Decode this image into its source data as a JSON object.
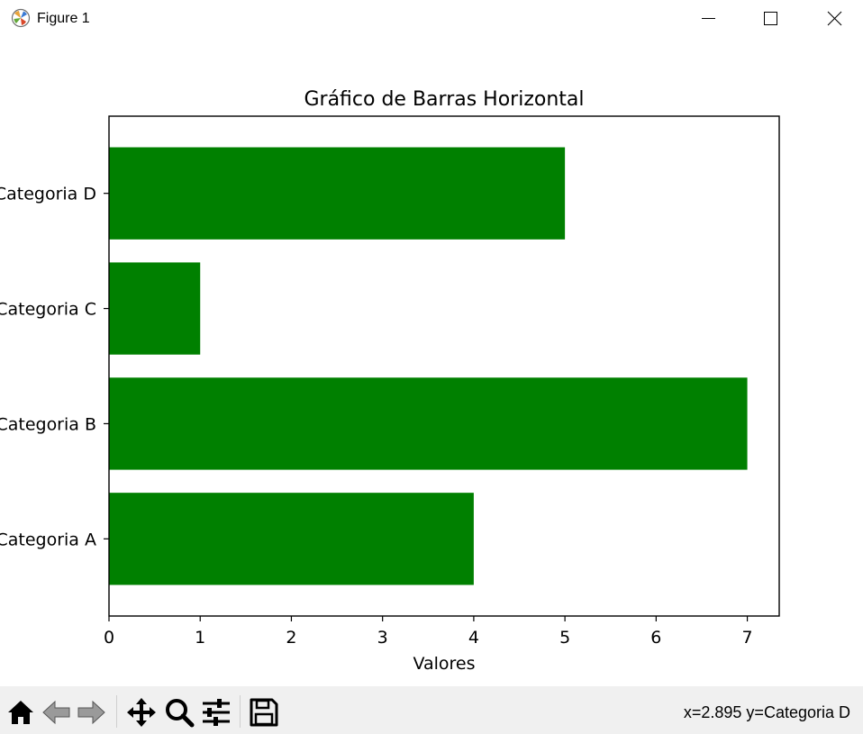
{
  "window": {
    "title": "Figure 1",
    "icons": {
      "app": "matplotlib-logo-icon",
      "minimize": "minimize-icon",
      "maximize": "maximize-icon",
      "close": "close-icon"
    }
  },
  "chart_data": {
    "type": "bar",
    "orientation": "horizontal",
    "title": "Gráfico de Barras Horizontal",
    "xlabel": "Valores",
    "ylabel": "",
    "categories": [
      "Categoria A",
      "Categoria B",
      "Categoria C",
      "Categoria D"
    ],
    "values": [
      4,
      7,
      1,
      5
    ],
    "xlim": [
      0,
      7.35
    ],
    "xticks": [
      0,
      1,
      2,
      3,
      4,
      5,
      6,
      7
    ],
    "bar_color": "#008000",
    "grid": false,
    "legend": null
  },
  "toolbar": {
    "tools": [
      {
        "name": "home-icon",
        "label": "Home"
      },
      {
        "name": "back-icon",
        "label": "Back"
      },
      {
        "name": "forward-icon",
        "label": "Forward"
      },
      {
        "name": "pan-icon",
        "label": "Pan"
      },
      {
        "name": "zoom-icon",
        "label": "Zoom"
      },
      {
        "name": "configure-subplots-icon",
        "label": "Configure subplots"
      },
      {
        "name": "save-icon",
        "label": "Save"
      }
    ],
    "coordinates": "x=2.895 y=Categoria D"
  }
}
